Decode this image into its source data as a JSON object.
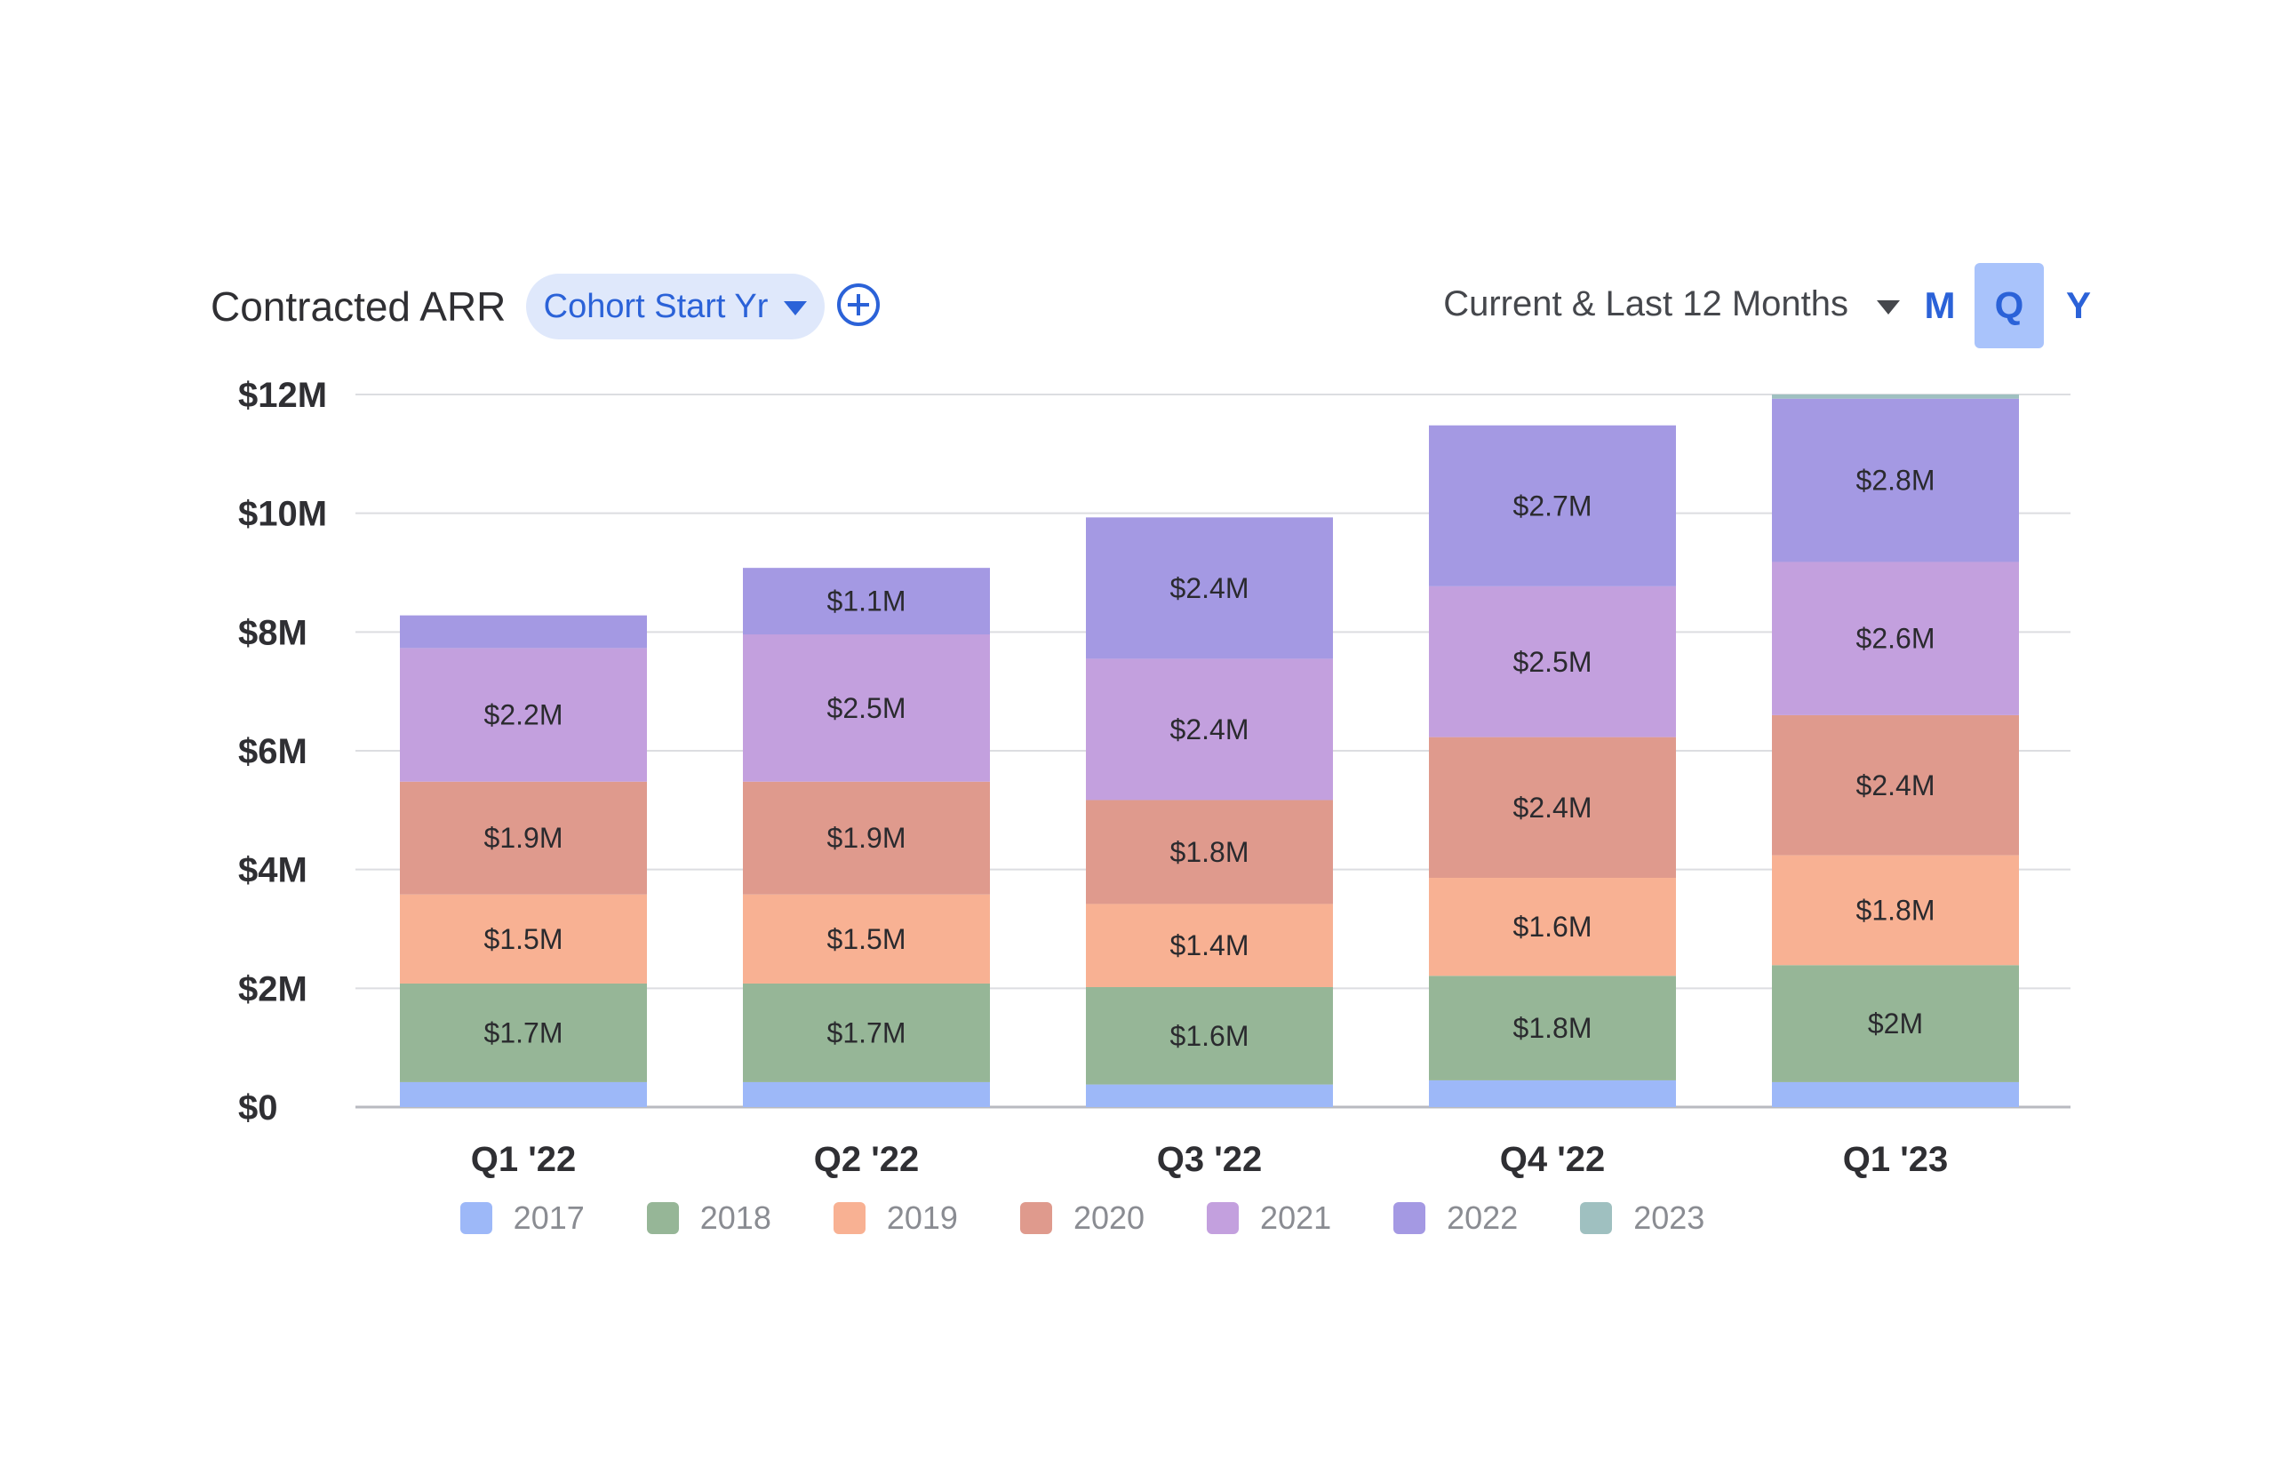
{
  "header": {
    "title": "Contracted ARR",
    "group_by_label": "Cohort Start Yr",
    "range_label": "Current & Last 12 Months",
    "periods": [
      "M",
      "Q",
      "Y"
    ],
    "active_period": "Q"
  },
  "icons": {
    "add": "plus-circle-icon",
    "dropdown": "triangle-down-icon"
  },
  "colors": {
    "accent": "#2b62d8",
    "2017": "#9db8f8",
    "2018": "#96b697",
    "2019": "#f8b193",
    "2020": "#df9a8d",
    "2021": "#c3a0de",
    "2022": "#a499e3",
    "2023": "#9fc0c0"
  },
  "chart_data": {
    "type": "bar",
    "stacked": true,
    "categories": [
      "Q1 '22",
      "Q2 '22",
      "Q3 '22",
      "Q4 '22",
      "Q1 '23"
    ],
    "series": [
      {
        "name": "2017",
        "values": [
          0.42,
          0.42,
          0.38,
          0.45,
          0.42
        ],
        "labels": [
          "",
          "",
          "",
          "",
          ""
        ]
      },
      {
        "name": "2018",
        "values": [
          1.66,
          1.66,
          1.64,
          1.76,
          1.97
        ],
        "labels": [
          "$1.7M",
          "$1.7M",
          "$1.6M",
          "$1.8M",
          "$2M"
        ]
      },
      {
        "name": "2019",
        "values": [
          1.5,
          1.5,
          1.4,
          1.65,
          1.85
        ],
        "labels": [
          "$1.5M",
          "$1.5M",
          "$1.4M",
          "$1.6M",
          "$1.8M"
        ]
      },
      {
        "name": "2020",
        "values": [
          1.9,
          1.9,
          1.75,
          2.37,
          2.36
        ],
        "labels": [
          "$1.9M",
          "$1.9M",
          "$1.8M",
          "$2.4M",
          "$2.4M"
        ]
      },
      {
        "name": "2021",
        "values": [
          2.25,
          2.48,
          2.38,
          2.54,
          2.58
        ],
        "labels": [
          "$2.2M",
          "$2.5M",
          "$2.4M",
          "$2.5M",
          "$2.6M"
        ]
      },
      {
        "name": "2022",
        "values": [
          0.55,
          1.12,
          2.38,
          2.71,
          2.75
        ],
        "labels": [
          "",
          "$1.1M",
          "$2.4M",
          "$2.7M",
          "$2.8M"
        ]
      },
      {
        "name": "2023",
        "values": [
          0,
          0,
          0,
          0,
          0.07
        ],
        "labels": [
          "",
          "",
          "",
          "",
          ""
        ]
      }
    ],
    "yticks": [
      "$0",
      "$2M",
      "$4M",
      "$6M",
      "$8M",
      "$10M",
      "$12M"
    ],
    "ylim": [
      0,
      12
    ],
    "grid": true,
    "legend_position": "bottom"
  }
}
